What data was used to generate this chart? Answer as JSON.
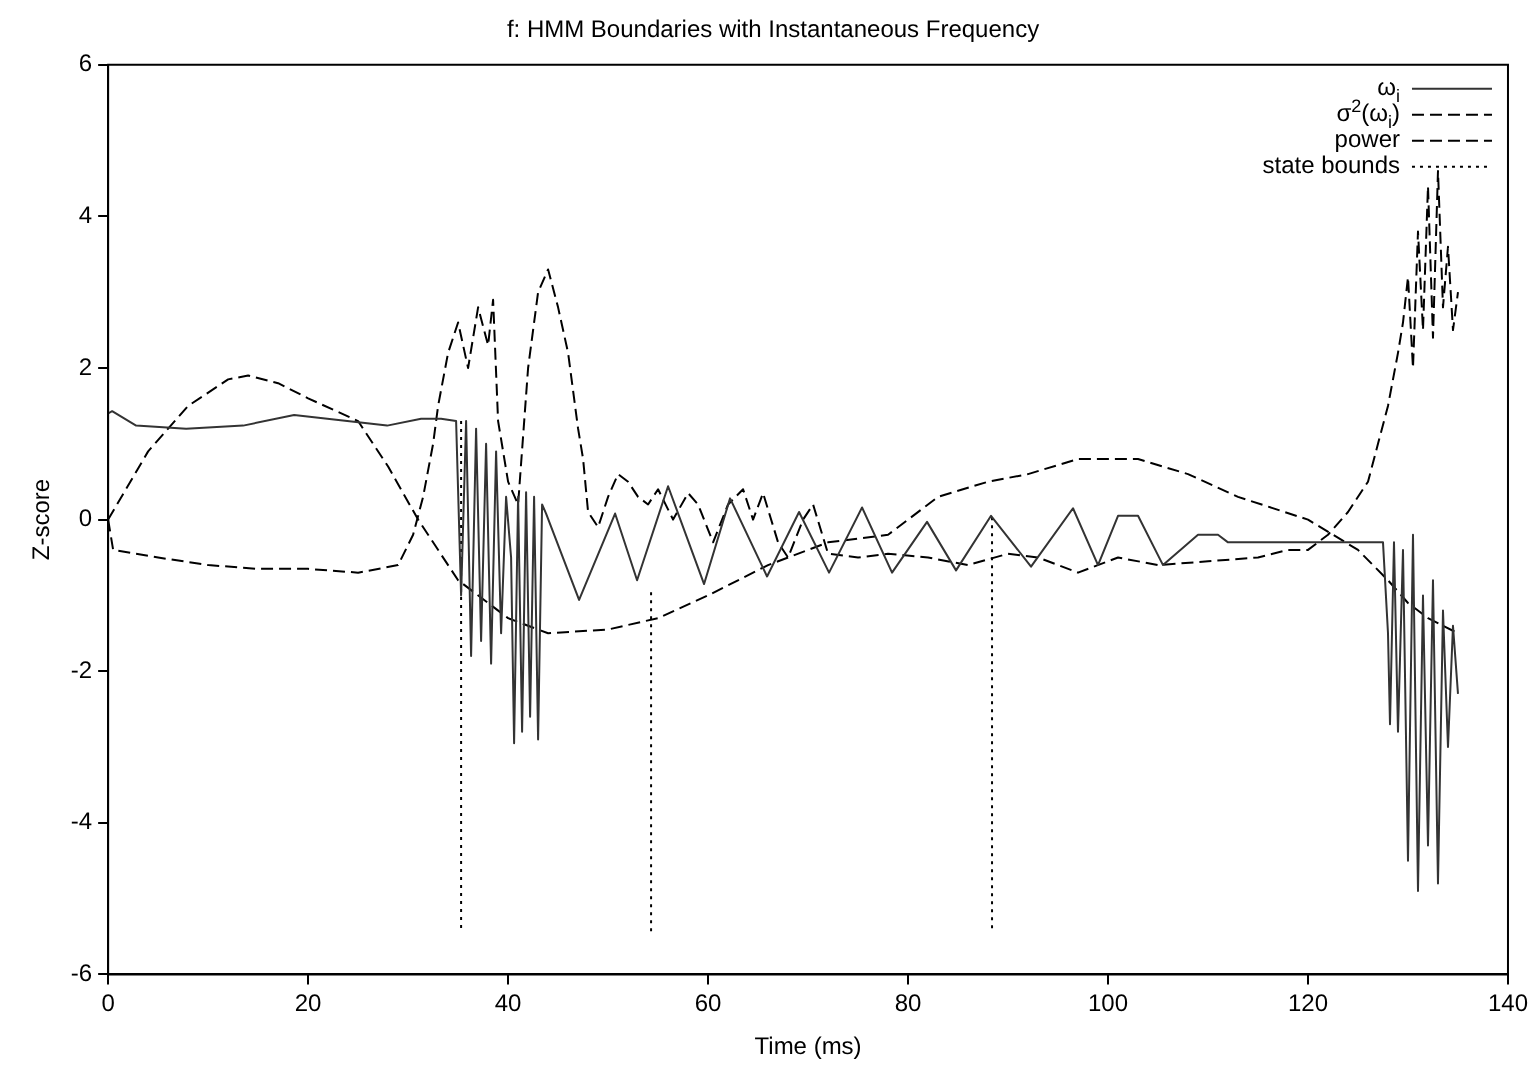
{
  "chart_data": {
    "type": "line",
    "title": "f: HMM Boundaries with Instantaneous Frequency",
    "xlabel": "Time (ms)",
    "ylabel": "Z-score",
    "xlim": [
      0,
      140
    ],
    "xticks": [
      0,
      20,
      40,
      60,
      80,
      100,
      120,
      140
    ],
    "ylim": [
      -6,
      6
    ],
    "yticks": [
      -6,
      -4,
      -2,
      0,
      2,
      4,
      6
    ],
    "grid": false,
    "legend": "top right",
    "marker": "none",
    "series": [
      {
        "name": "ω$_{i}$",
        "color": "#333333",
        "line_style": "solid",
        "x": [
          0,
          0.4,
          2.8,
          7.8,
          13.5,
          18.6,
          27.9,
          31.3,
          33.3,
          34.8,
          35.3,
          35.8,
          36.3,
          36.8,
          37.3,
          37.8,
          38.3,
          38.8,
          39.3,
          39.8,
          40.3,
          40.6,
          41.0,
          41.4,
          41.8,
          42.2,
          42.6,
          43.0,
          43.4,
          43.8,
          47.1,
          50.7,
          52.9,
          56.0,
          59.6,
          62.2,
          65.9,
          69.1,
          72.1,
          75.4,
          78.4,
          81.9,
          84.8,
          88.3,
          92.3,
          96.5,
          99,
          101,
          103,
          105.5,
          109,
          111,
          112,
          118,
          121,
          125,
          127.5,
          128,
          128.2,
          128.6,
          129,
          129.5,
          130,
          130.5,
          131,
          131.5,
          132,
          132.5,
          133,
          133.5,
          134,
          134.5,
          135
        ],
        "values": [
          1.4,
          1.43,
          1.24,
          1.2,
          1.24,
          1.38,
          1.24,
          1.33,
          1.33,
          1.3,
          -1.0,
          1.3,
          -1.8,
          1.2,
          -1.6,
          1.0,
          -1.9,
          0.9,
          -1.5,
          0.3,
          -0.5,
          -2.95,
          0.3,
          -2.8,
          0.36,
          -2.6,
          0.3,
          -2.9,
          0.2,
          0.08,
          -1.06,
          0.08,
          -0.8,
          0.44,
          -0.85,
          0.28,
          -0.75,
          0.1,
          -0.7,
          0.16,
          -0.7,
          -0.03,
          -0.67,
          0.05,
          -0.62,
          0.15,
          -0.6,
          0.05,
          0.05,
          -0.6,
          -0.2,
          -0.2,
          -0.3,
          -0.3,
          -0.3,
          -0.3,
          -0.3,
          -1.5,
          -2.7,
          -0.3,
          -2.8,
          -0.4,
          -4.5,
          -0.2,
          -4.9,
          -1.0,
          -4.3,
          -0.8,
          -4.8,
          -1.2,
          -3.0,
          -1.4,
          -2.3
        ]
      },
      {
        "name": "σ$^{2}$(ω$_{i}$)",
        "color": "#000000",
        "line_style": "dashed",
        "x": [
          0,
          0.5,
          5,
          10,
          15,
          20,
          25,
          29,
          30.5,
          31.5,
          32.5,
          33,
          34,
          35,
          36,
          37,
          38,
          38.5,
          39,
          40,
          41,
          42,
          43,
          44,
          45,
          46,
          47,
          47.5,
          48,
          49,
          50,
          51,
          52,
          53,
          54,
          55,
          56.5,
          58,
          59,
          60.5,
          62,
          63.5,
          64.5,
          65.5,
          67,
          68,
          69.5,
          70.5,
          72,
          75,
          78,
          82,
          86,
          90,
          93,
          97,
          101,
          105,
          110,
          115,
          118,
          120,
          122,
          124,
          126,
          127,
          128,
          129,
          129.5,
          130,
          130.5,
          131,
          131.5,
          132,
          132.5,
          133,
          133.5,
          134,
          134.5,
          135
        ],
        "values": [
          0,
          -0.4,
          -0.5,
          -0.6,
          -0.65,
          -0.65,
          -0.7,
          -0.6,
          -0.2,
          0.3,
          1.0,
          1.5,
          2.2,
          2.6,
          2.0,
          2.8,
          2.3,
          2.9,
          1.3,
          0.5,
          0.2,
          2.0,
          3.0,
          3.3,
          2.8,
          2.2,
          1.2,
          0.8,
          0.1,
          -0.1,
          0.3,
          0.6,
          0.5,
          0.3,
          0.2,
          0.4,
          0.0,
          0.35,
          0.2,
          -0.3,
          0.2,
          0.4,
          0.0,
          0.35,
          -0.3,
          -0.5,
          0.0,
          0.2,
          -0.45,
          -0.5,
          -0.45,
          -0.5,
          -0.6,
          -0.45,
          -0.5,
          -0.7,
          -0.5,
          -0.6,
          -0.55,
          -0.5,
          -0.4,
          -0.4,
          -0.2,
          0.1,
          0.5,
          1.0,
          1.5,
          2.2,
          2.6,
          3.2,
          2.0,
          3.8,
          2.5,
          4.4,
          2.4,
          4.6,
          2.8,
          3.6,
          2.5,
          3.0
        ]
      },
      {
        "name": "power",
        "color": "#000000",
        "line_style": "dashed",
        "x": [
          0,
          4,
          8,
          12,
          14,
          17,
          20,
          25,
          28,
          31,
          35,
          40,
          44,
          50,
          55,
          60,
          66,
          72,
          78,
          83,
          88,
          92,
          97,
          103,
          108,
          113,
          120,
          125,
          128,
          130,
          132,
          135
        ],
        "values": [
          0,
          0.9,
          1.5,
          1.85,
          1.9,
          1.8,
          1.6,
          1.3,
          0.7,
          0,
          -0.8,
          -1.3,
          -1.5,
          -1.45,
          -1.3,
          -1.0,
          -0.6,
          -0.3,
          -0.2,
          0.3,
          0.5,
          0.6,
          0.8,
          0.8,
          0.6,
          0.3,
          0,
          -0.4,
          -0.8,
          -1.1,
          -1.3,
          -1.5
        ]
      },
      {
        "name": "state bounds",
        "color": "#000000",
        "line_style": "dotted",
        "x": [
          35.3,
          35.3,
          null,
          54.3,
          54.3,
          null,
          88.4,
          88.4
        ],
        "values": [
          1.3,
          -5.45,
          null,
          -0.96,
          -5.45,
          null,
          0.03,
          -5.45
        ]
      }
    ]
  }
}
